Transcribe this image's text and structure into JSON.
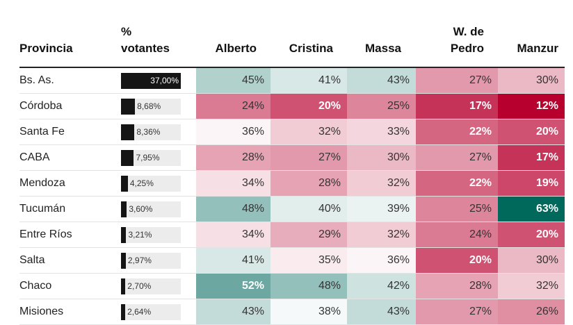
{
  "chart_data": {
    "type": "table",
    "columns": [
      "Provincia",
      "% votantes",
      "Alberto",
      "Cristina",
      "Massa",
      "W. de Pedro",
      "Manzur"
    ],
    "rows": [
      {
        "provincia": "Bs. As.",
        "votantes_label": "37,00%",
        "votantes": 37.0,
        "values": [
          45,
          41,
          43,
          27,
          30
        ],
        "labels": [
          "45%",
          "41%",
          "43%",
          "27%",
          "30%"
        ]
      },
      {
        "provincia": "Córdoba",
        "votantes_label": "8,68%",
        "votantes": 8.68,
        "values": [
          24,
          20,
          25,
          17,
          12
        ],
        "labels": [
          "24%",
          "20%",
          "25%",
          "17%",
          "12%"
        ]
      },
      {
        "provincia": "Santa Fe",
        "votantes_label": "8,36%",
        "votantes": 8.36,
        "values": [
          36,
          32,
          33,
          22,
          20
        ],
        "labels": [
          "36%",
          "32%",
          "33%",
          "22%",
          "20%"
        ]
      },
      {
        "provincia": "CABA",
        "votantes_label": "7,95%",
        "votantes": 7.95,
        "values": [
          28,
          27,
          30,
          27,
          17
        ],
        "labels": [
          "28%",
          "27%",
          "30%",
          "27%",
          "17%"
        ]
      },
      {
        "provincia": "Mendoza",
        "votantes_label": "4,25%",
        "votantes": 4.25,
        "values": [
          34,
          28,
          32,
          22,
          19
        ],
        "labels": [
          "34%",
          "28%",
          "32%",
          "22%",
          "19%"
        ]
      },
      {
        "provincia": "Tucumán",
        "votantes_label": "3,60%",
        "votantes": 3.6,
        "values": [
          48,
          40,
          39,
          25,
          63
        ],
        "labels": [
          "48%",
          "40%",
          "39%",
          "25%",
          "63%"
        ]
      },
      {
        "provincia": "Entre Ríos",
        "votantes_label": "3,21%",
        "votantes": 3.21,
        "values": [
          34,
          29,
          32,
          24,
          20
        ],
        "labels": [
          "34%",
          "29%",
          "32%",
          "24%",
          "20%"
        ]
      },
      {
        "provincia": "Salta",
        "votantes_label": "2,97%",
        "votantes": 2.97,
        "values": [
          41,
          35,
          36,
          20,
          30
        ],
        "labels": [
          "41%",
          "35%",
          "36%",
          "20%",
          "30%"
        ]
      },
      {
        "provincia": "Chaco",
        "votantes_label": "2,70%",
        "votantes": 2.7,
        "values": [
          52,
          48,
          42,
          28,
          32
        ],
        "labels": [
          "52%",
          "48%",
          "42%",
          "28%",
          "32%"
        ]
      },
      {
        "provincia": "Misiones",
        "votantes_label": "2,64%",
        "votantes": 2.64,
        "values": [
          43,
          38,
          43,
          27,
          26
        ],
        "labels": [
          "43%",
          "38%",
          "43%",
          "27%",
          "26%"
        ]
      }
    ],
    "bar_max": 37.0,
    "color_scale": {
      "low": "#b8002f",
      "mid": "#ffffff",
      "high": "#00695c",
      "domain": [
        12,
        37,
        63
      ]
    }
  },
  "header": {
    "provincia": "Provincia",
    "votantes_line1": "%",
    "votantes_line2": "votantes",
    "alberto": "Alberto",
    "cristina": "Cristina",
    "massa": "Massa",
    "wdepedro_line1": "W. de",
    "wdepedro_line2": "Pedro",
    "manzur": "Manzur"
  }
}
